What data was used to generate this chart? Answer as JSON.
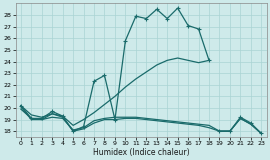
{
  "xlabel": "Humidex (Indice chaleur)",
  "background_color": "#ceeaea",
  "grid_color": "#aad4d4",
  "line_color": "#1a6b6b",
  "xlim": [
    -0.5,
    23.5
  ],
  "ylim": [
    17.5,
    29.0
  ],
  "yticks": [
    18,
    19,
    20,
    21,
    22,
    23,
    24,
    25,
    26,
    27,
    28
  ],
  "xticks": [
    0,
    1,
    2,
    3,
    4,
    5,
    6,
    7,
    8,
    9,
    10,
    11,
    12,
    13,
    14,
    15,
    16,
    17,
    18,
    19,
    20,
    21,
    22,
    23
  ],
  "series": [
    {
      "x": [
        0,
        1,
        2,
        3,
        4,
        5,
        6,
        7,
        8,
        9,
        10,
        11,
        12,
        13,
        14,
        15,
        16,
        17,
        18
      ],
      "y": [
        20.2,
        19.1,
        19.1,
        19.7,
        19.3,
        18.0,
        18.4,
        22.3,
        22.8,
        19.0,
        25.8,
        27.9,
        27.7,
        28.5,
        27.7,
        28.6,
        27.1,
        26.8,
        24.1
      ],
      "marker": true,
      "lw": 0.9
    },
    {
      "x": [
        0,
        1,
        2,
        3,
        4,
        5,
        6,
        7,
        8,
        9,
        10,
        11,
        12,
        13,
        14,
        15,
        16,
        17,
        18
      ],
      "y": [
        20.2,
        19.4,
        19.2,
        19.5,
        19.3,
        18.5,
        19.0,
        19.6,
        20.3,
        21.0,
        21.8,
        22.5,
        23.1,
        23.7,
        24.1,
        24.3,
        24.1,
        23.9,
        24.1
      ],
      "marker": false,
      "lw": 0.9
    },
    {
      "x": [
        0,
        1,
        2,
        3,
        4,
        5,
        6,
        7,
        8,
        9,
        10,
        11,
        12,
        13,
        14,
        15,
        16,
        17,
        18,
        19,
        20,
        21,
        22,
        23
      ],
      "y": [
        19.9,
        19.1,
        19.0,
        19.2,
        19.1,
        18.1,
        18.3,
        18.9,
        19.1,
        19.2,
        19.2,
        19.2,
        19.1,
        19.0,
        18.9,
        18.8,
        18.7,
        18.6,
        18.5,
        18.0,
        18.0,
        19.1,
        18.6,
        17.8
      ],
      "marker": false,
      "lw": 0.9
    },
    {
      "x": [
        0,
        1,
        2,
        3,
        4,
        5,
        6,
        7,
        8,
        9,
        10,
        11,
        12,
        13,
        14,
        15,
        16,
        17,
        18,
        19,
        20,
        21,
        22,
        23
      ],
      "y": [
        20.1,
        19.0,
        19.0,
        19.5,
        19.2,
        18.0,
        18.2,
        18.7,
        19.0,
        19.0,
        19.1,
        19.1,
        19.0,
        18.9,
        18.8,
        18.7,
        18.6,
        18.5,
        18.3,
        18.0,
        18.0,
        19.1,
        18.6,
        17.8
      ],
      "marker": false,
      "lw": 0.9
    },
    {
      "x": [
        19,
        20,
        21,
        22,
        23
      ],
      "y": [
        18.0,
        18.0,
        19.2,
        18.7,
        17.8
      ],
      "marker": true,
      "lw": 0.9
    }
  ]
}
